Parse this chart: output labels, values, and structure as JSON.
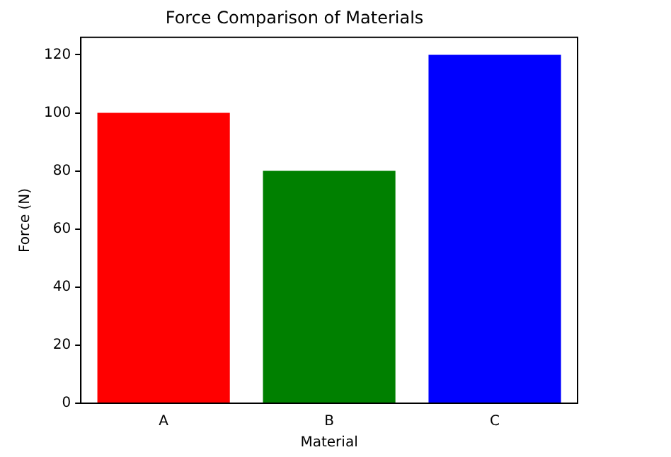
{
  "chart_data": {
    "type": "bar",
    "title": "Force Comparison of Materials",
    "xlabel": "Material",
    "ylabel": "Force (N)",
    "categories": [
      "A",
      "B",
      "C"
    ],
    "values": [
      100,
      80,
      120
    ],
    "colors": [
      "#ff0000",
      "#008000",
      "#0000ff"
    ],
    "ylim": [
      0,
      126
    ],
    "yticks": [
      0,
      20,
      40,
      60,
      80,
      100,
      120
    ],
    "grid": false,
    "legend": false
  }
}
